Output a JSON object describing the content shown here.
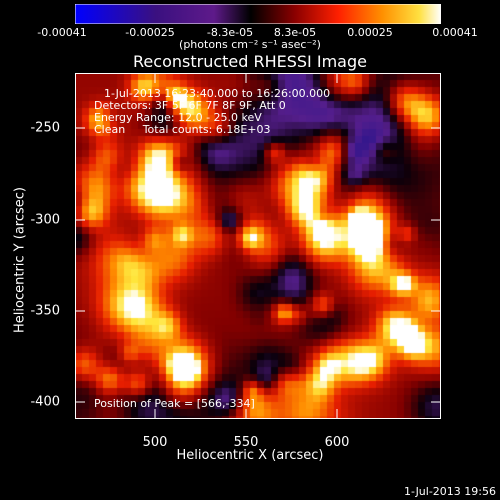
{
  "colorbar": {
    "ticks": [
      "-0.00041",
      "-0.00025",
      "-8.3e-05",
      "8.3e-05",
      "0.00025",
      "0.00041"
    ],
    "units": "(photons cm⁻² s⁻¹ asec⁻²)",
    "colors": [
      "#0000ff",
      "#2020a0",
      "#4b0a6e",
      "#5e1a8a",
      "#000000",
      "#700000",
      "#d01000",
      "#ff4000",
      "#ff9000",
      "#ffe000",
      "#ffffff"
    ]
  },
  "title": "Reconstructed RHESSI Image",
  "info": {
    "line1": "1-Jul-2013 16:23:40.000 to 16:26:00.000",
    "line2": "Detectors: 3F 5F 6F 7F 8F 9F, Att 0",
    "line3": "Energy Range: 12.0 - 25.0 keV",
    "line4": "Clean     Total counts: 6.18E+03",
    "peak": "Position of Peak = [566,-334]"
  },
  "axes": {
    "xlabel": "Heliocentric X (arcsec)",
    "ylabel": "Heliocentric Y (arcsec)",
    "xticks": [
      "500",
      "550",
      "600"
    ],
    "yticks": [
      "-250",
      "-300",
      "-350",
      "-400"
    ]
  },
  "timestamp": "1-Jul-2013 19:56"
}
